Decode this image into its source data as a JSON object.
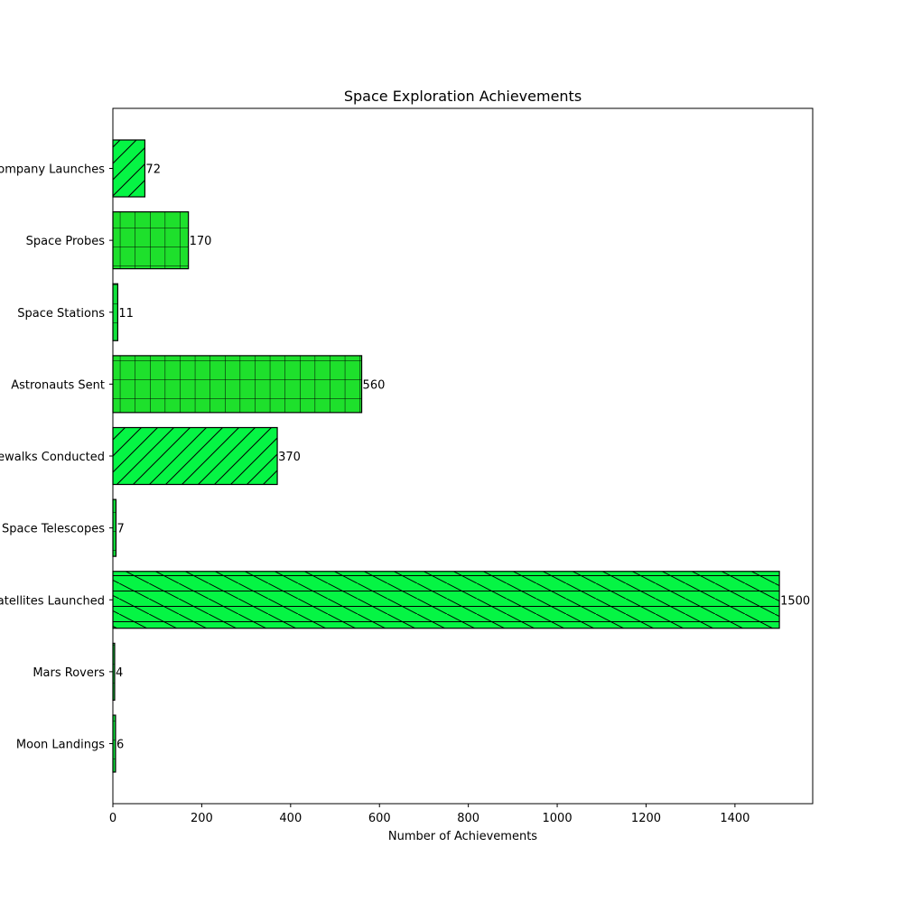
{
  "chart_data": {
    "type": "bar",
    "orientation": "horizontal",
    "title": "Space Exploration Achievements",
    "xlabel": "Number of Achievements",
    "ylabel": "",
    "xlim": [
      0,
      1575
    ],
    "xticks": [
      0,
      200,
      400,
      600,
      800,
      1000,
      1200,
      1400
    ],
    "grid": false,
    "categories": [
      "Moon Landings",
      "Mars Rovers",
      "Satellites Launched",
      "Space Telescopes",
      "Spacewalks Conducted",
      "Astronauts Sent",
      "Space Stations",
      "Space Probes",
      "Private Company Launches"
    ],
    "values": [
      6,
      4,
      1500,
      7,
      370,
      560,
      11,
      170,
      72
    ],
    "data_labels": [
      "6",
      "4",
      "1500",
      "7",
      "370",
      "560",
      "11",
      "170",
      "72"
    ],
    "bar_colors": [
      "#10e23c",
      "#10e23c",
      "#05f544",
      "#10e23c",
      "#05f544",
      "#1ee02c",
      "#10e23c",
      "#1ee02c",
      "#05f544"
    ],
    "hatches": [
      "grid",
      "grid",
      "hline-backslash",
      "grid",
      "slash",
      "grid",
      "grid",
      "grid",
      "slash"
    ],
    "edge_color": "#000000"
  }
}
